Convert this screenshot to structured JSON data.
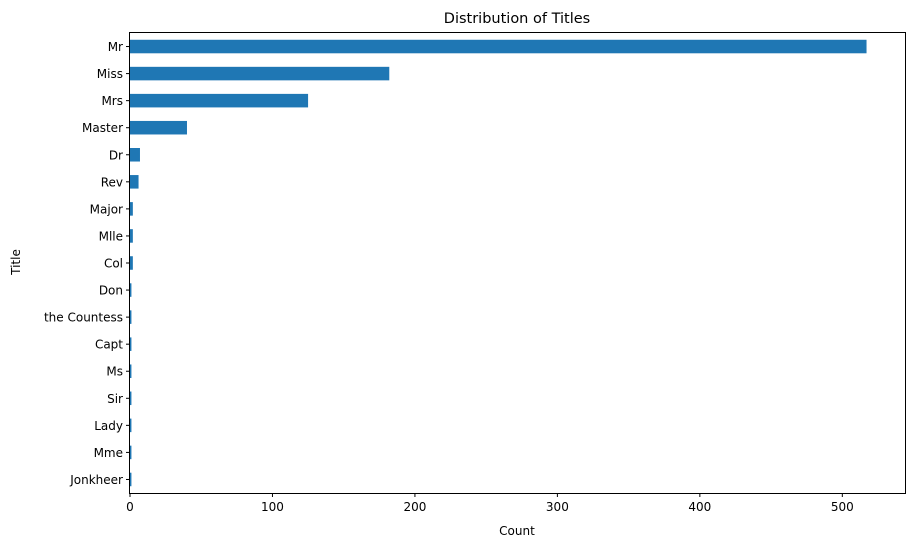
{
  "chart_data": {
    "type": "bar",
    "orientation": "horizontal",
    "title": "Distribution of Titles",
    "xlabel": "Count",
    "ylabel": "Title",
    "categories": [
      "Mr",
      "Miss",
      "Mrs",
      "Master",
      "Dr",
      "Rev",
      "Major",
      "Mlle",
      "Col",
      "Don",
      "the Countess",
      "Capt",
      "Ms",
      "Sir",
      "Lady",
      "Mme",
      "Jonkheer"
    ],
    "values": [
      517,
      182,
      125,
      40,
      7,
      6,
      2,
      2,
      2,
      1,
      1,
      1,
      1,
      1,
      1,
      1,
      1
    ],
    "xlim": [
      0,
      544
    ],
    "xticks": [
      0,
      100,
      200,
      300,
      400,
      500
    ],
    "grid": false,
    "bar_color": "#1f77b4"
  }
}
